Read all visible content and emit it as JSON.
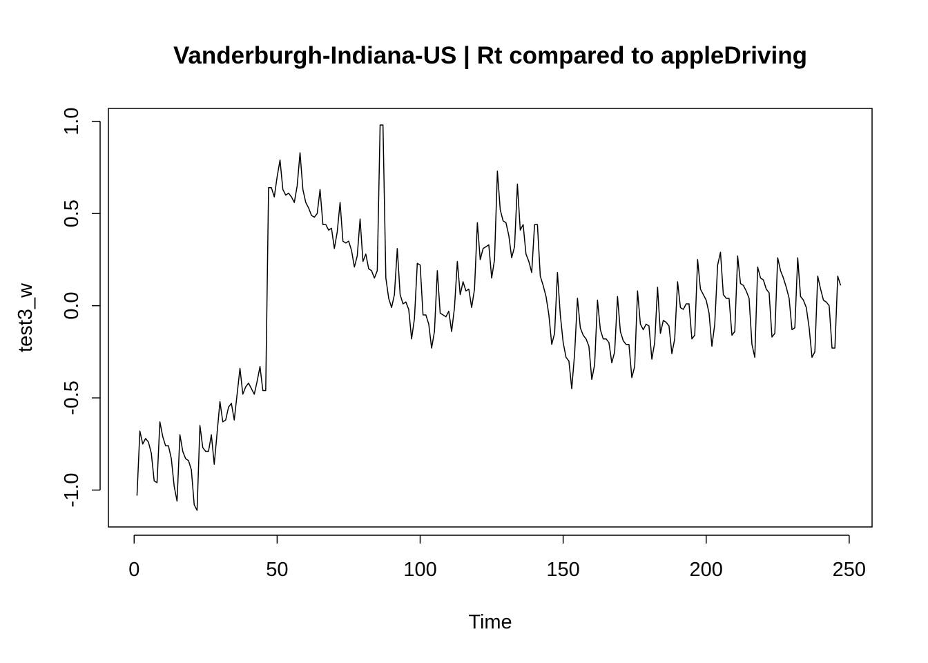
{
  "chart_data": {
    "type": "line",
    "title": "Vanderburgh-Indiana-US | Rt compared to appleDriving",
    "xlabel": "Time",
    "ylabel": "test3_w",
    "xlim": [
      -9,
      258
    ],
    "ylim": [
      -1.2,
      1.07
    ],
    "x_ticks": [
      0,
      50,
      100,
      150,
      200,
      250
    ],
    "x_tick_labels": [
      "0",
      "50",
      "100",
      "150",
      "200",
      "250"
    ],
    "y_ticks": [
      -1.0,
      -0.5,
      0.0,
      0.5,
      1.0
    ],
    "y_tick_labels": [
      "-1.0",
      "-0.5",
      "0.0",
      "0.5",
      "1.0"
    ],
    "grid": false,
    "color": "#000000",
    "x_start": 1,
    "y": [
      -1.03,
      -0.68,
      -0.75,
      -0.72,
      -0.74,
      -0.8,
      -0.95,
      -0.96,
      -0.63,
      -0.71,
      -0.76,
      -0.76,
      -0.83,
      -0.98,
      -1.06,
      -0.7,
      -0.79,
      -0.83,
      -0.84,
      -0.89,
      -1.08,
      -1.11,
      -0.65,
      -0.77,
      -0.79,
      -0.79,
      -0.7,
      -0.86,
      -0.69,
      -0.52,
      -0.63,
      -0.62,
      -0.55,
      -0.53,
      -0.62,
      -0.48,
      -0.34,
      -0.48,
      -0.44,
      -0.42,
      -0.45,
      -0.48,
      -0.41,
      -0.33,
      -0.46,
      -0.46,
      0.64,
      0.64,
      0.59,
      0.7,
      0.79,
      0.63,
      0.6,
      0.61,
      0.59,
      0.56,
      0.65,
      0.83,
      0.63,
      0.56,
      0.53,
      0.49,
      0.48,
      0.5,
      0.63,
      0.44,
      0.44,
      0.41,
      0.42,
      0.31,
      0.4,
      0.56,
      0.35,
      0.34,
      0.35,
      0.3,
      0.21,
      0.27,
      0.47,
      0.24,
      0.28,
      0.2,
      0.19,
      0.15,
      0.19,
      0.98,
      0.98,
      0.15,
      0.04,
      -0.01,
      0.06,
      0.31,
      0.06,
      0.01,
      0.02,
      -0.02,
      -0.18,
      -0.07,
      0.23,
      0.22,
      -0.05,
      -0.05,
      -0.1,
      -0.23,
      -0.14,
      0.19,
      -0.04,
      -0.05,
      -0.06,
      -0.03,
      -0.14,
      -0.01,
      0.24,
      0.06,
      0.13,
      0.08,
      0.09,
      -0.01,
      0.09,
      0.45,
      0.25,
      0.31,
      0.32,
      0.33,
      0.15,
      0.25,
      0.73,
      0.52,
      0.46,
      0.45,
      0.38,
      0.26,
      0.32,
      0.66,
      0.41,
      0.44,
      0.28,
      0.24,
      0.18,
      0.44,
      0.44,
      0.16,
      0.11,
      0.05,
      -0.05,
      -0.21,
      -0.15,
      0.18,
      -0.05,
      -0.2,
      -0.28,
      -0.3,
      -0.45,
      -0.26,
      0.04,
      -0.12,
      -0.16,
      -0.18,
      -0.22,
      -0.4,
      -0.32,
      0.03,
      -0.13,
      -0.18,
      -0.18,
      -0.2,
      -0.31,
      -0.25,
      0.05,
      -0.14,
      -0.19,
      -0.21,
      -0.21,
      -0.39,
      -0.33,
      0.08,
      -0.1,
      -0.13,
      -0.1,
      -0.11,
      -0.29,
      -0.2,
      0.1,
      -0.15,
      -0.08,
      -0.09,
      -0.11,
      -0.26,
      -0.18,
      0.13,
      -0.01,
      -0.02,
      0.01,
      0.01,
      -0.18,
      -0.16,
      0.25,
      0.09,
      0.06,
      0.03,
      -0.04,
      -0.22,
      -0.1,
      0.22,
      0.29,
      0.06,
      0.04,
      0.04,
      -0.16,
      -0.14,
      0.27,
      0.12,
      0.11,
      0.08,
      0.04,
      -0.21,
      -0.28,
      0.21,
      0.15,
      0.14,
      0.09,
      0.07,
      -0.17,
      -0.15,
      0.26,
      0.19,
      0.15,
      0.1,
      0.04,
      -0.13,
      -0.12,
      0.26,
      0.05,
      0.03,
      -0.01,
      -0.12,
      -0.28,
      -0.25,
      0.16,
      0.09,
      0.03,
      0.02,
      0.0,
      -0.23,
      -0.23,
      0.16,
      0.11
    ]
  }
}
